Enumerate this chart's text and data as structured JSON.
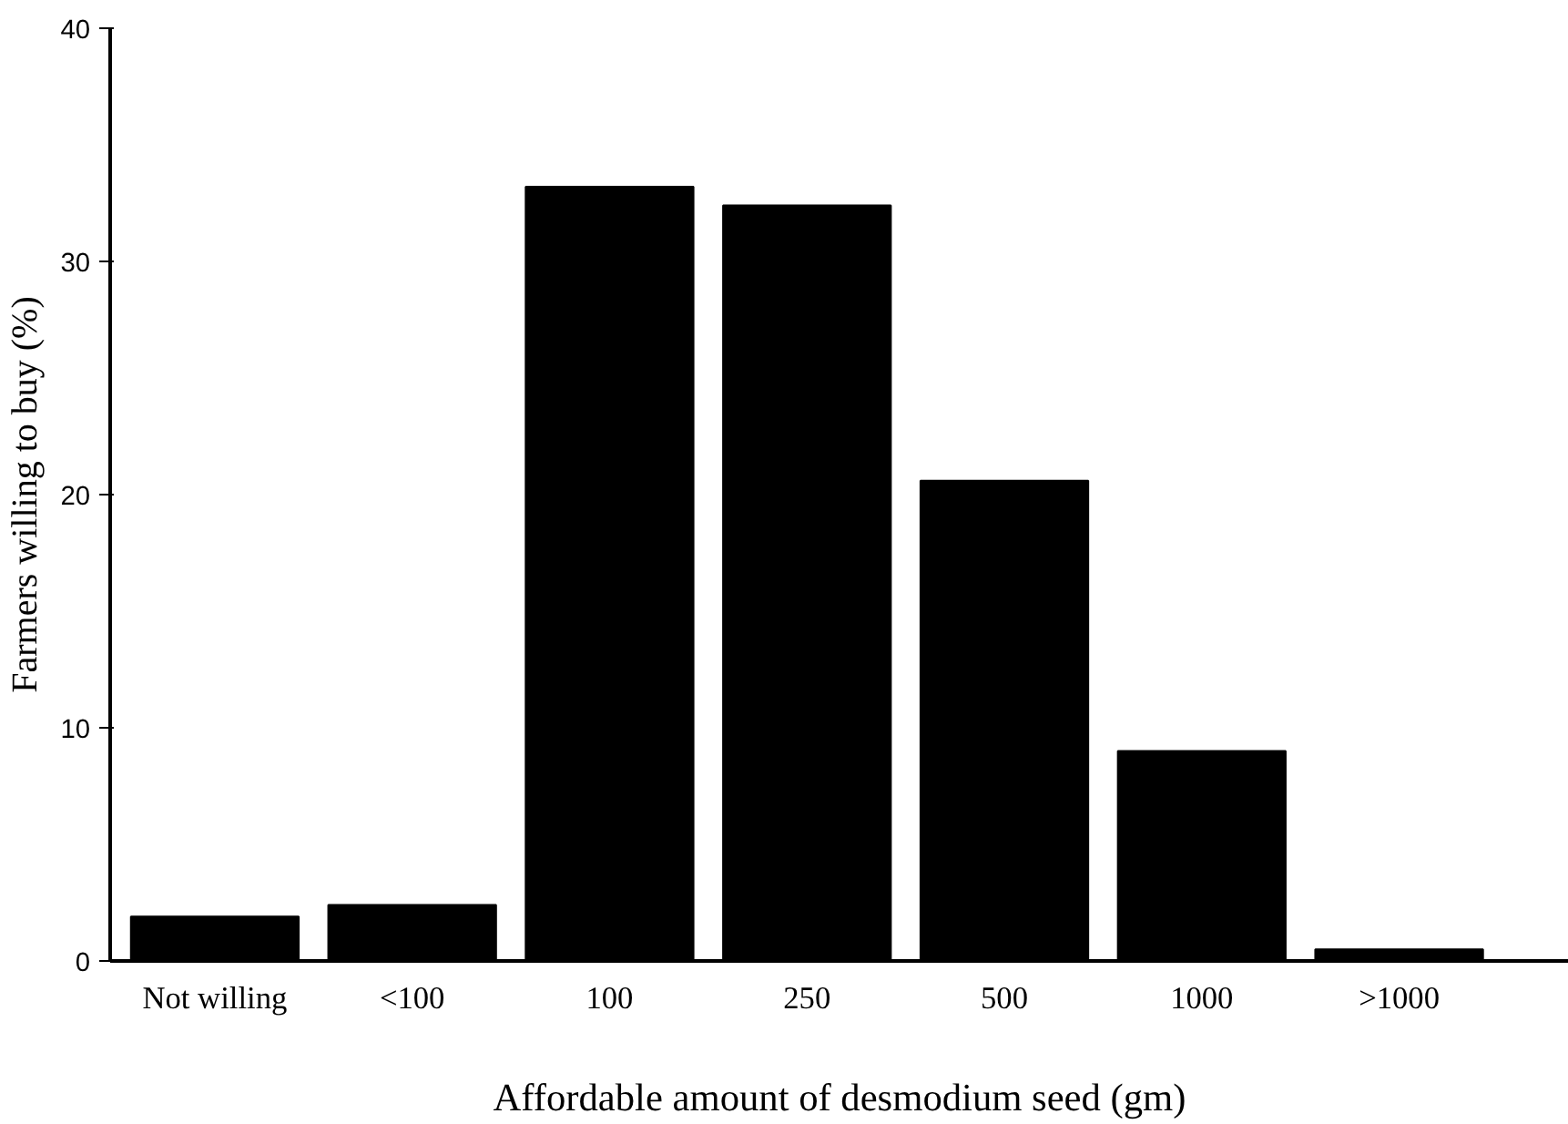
{
  "chart_data": {
    "type": "bar",
    "xlabel": "Affordable amount of desmodium seed (gm)",
    "ylabel": "Farmers willing to buy (%)",
    "categories": [
      "Not willing",
      "<100",
      "100",
      "250",
      "500",
      "1000",
      ">1000"
    ],
    "values": [
      1.9,
      2.4,
      33.2,
      32.4,
      20.6,
      9.0,
      0.5
    ],
    "color": "#000000",
    "ylim": [
      0,
      40
    ],
    "yticks": [
      0,
      10,
      20,
      30,
      40
    ],
    "grid": false
  }
}
